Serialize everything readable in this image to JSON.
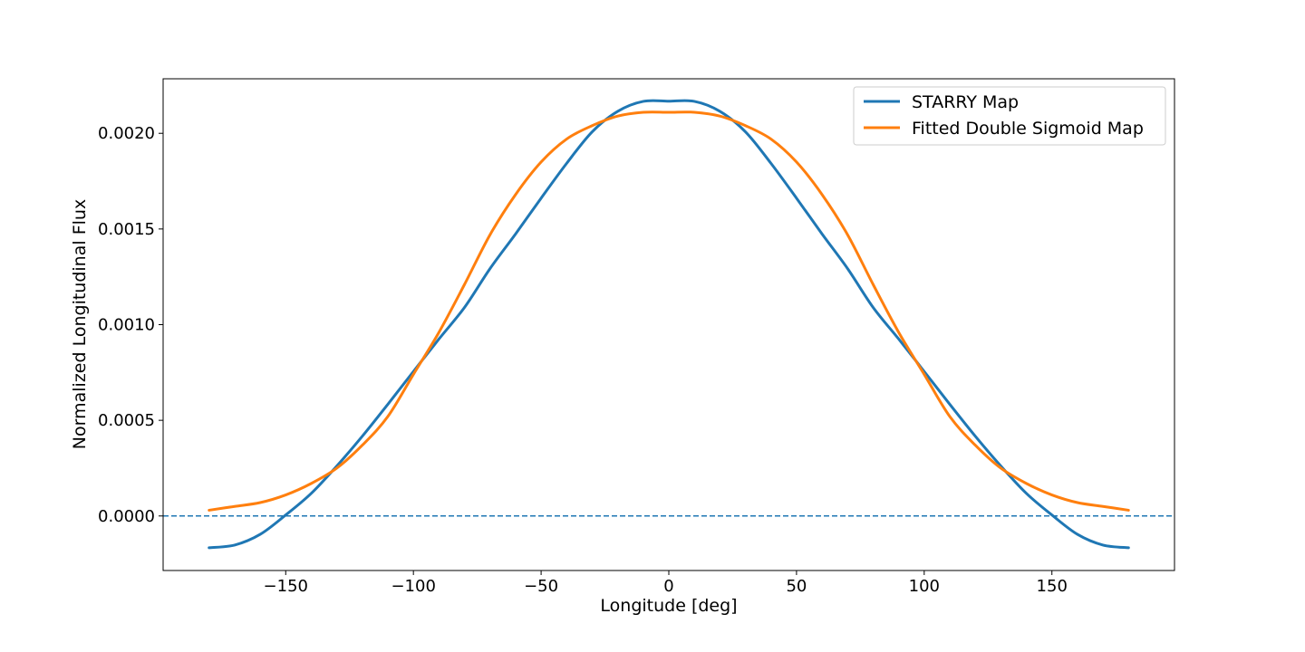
{
  "chart_data": {
    "type": "line",
    "title": "",
    "xlabel": "Longitude [deg]",
    "ylabel": "Normalized Longitudinal Flux",
    "xlim": [
      -198,
      198
    ],
    "ylim": [
      -0.000285,
      0.002285
    ],
    "x_ticks": [
      -150,
      -100,
      -50,
      0,
      50,
      100,
      150
    ],
    "x_tick_labels": [
      "−150",
      "−100",
      "−50",
      "0",
      "50",
      "100",
      "150"
    ],
    "y_ticks": [
      0,
      0.0005,
      0.001,
      0.0015,
      0.002
    ],
    "y_tick_labels": [
      "0.0000",
      "0.0005",
      "0.0010",
      "0.0015",
      "0.0020"
    ],
    "grid": false,
    "legend_position": "top-right",
    "reference_line": {
      "y": 0,
      "style": "dashed",
      "color": "#1f77b4"
    },
    "series": [
      {
        "name": "STARRY Map",
        "color": "#1f77b4",
        "x": [
          -180,
          -170,
          -160,
          -150,
          -140,
          -130,
          -120,
          -110,
          -100,
          -90,
          -80,
          -70,
          -60,
          -50,
          -40,
          -30,
          -20,
          -10,
          0,
          10,
          20,
          30,
          40,
          50,
          60,
          70,
          80,
          90,
          100,
          110,
          120,
          130,
          140,
          150,
          160,
          170,
          180
        ],
        "y": [
          -0.000166,
          -0.000152,
          -9.6e-05,
          5e-06,
          0.000118,
          0.000261,
          0.000417,
          0.000584,
          0.000755,
          0.000925,
          0.00109,
          0.001293,
          0.001474,
          0.001661,
          0.001843,
          0.002008,
          0.002115,
          0.002167,
          0.002168,
          0.002167,
          0.002115,
          0.002008,
          0.001843,
          0.001661,
          0.001474,
          0.001293,
          0.00109,
          0.000925,
          0.000755,
          0.000584,
          0.000417,
          0.000261,
          0.000118,
          5e-06,
          -9.6e-05,
          -0.000152,
          -0.000166
        ]
      },
      {
        "name": "Fitted Double Sigmoid Map",
        "color": "#ff7f0e",
        "x": [
          -180,
          -170,
          -160,
          -150,
          -140,
          -130,
          -120,
          -110,
          -100,
          -90,
          -80,
          -70,
          -60,
          -50,
          -40,
          -30,
          -20,
          -10,
          0,
          10,
          20,
          30,
          40,
          50,
          60,
          70,
          80,
          90,
          100,
          110,
          120,
          130,
          140,
          150,
          160,
          170,
          180
        ],
        "y": [
          3e-05,
          5e-05,
          7e-05,
          0.00011,
          0.00017,
          0.00025,
          0.00037,
          0.00052,
          0.00074,
          0.00096,
          0.00121,
          0.00147,
          0.00168,
          0.00185,
          0.00197,
          0.00204,
          0.00209,
          0.00211,
          0.00211,
          0.00211,
          0.00209,
          0.00204,
          0.00197,
          0.00185,
          0.00168,
          0.00147,
          0.00121,
          0.00096,
          0.00074,
          0.00052,
          0.00037,
          0.00025,
          0.00017,
          0.00011,
          7e-05,
          5e-05,
          3e-05
        ]
      }
    ]
  }
}
